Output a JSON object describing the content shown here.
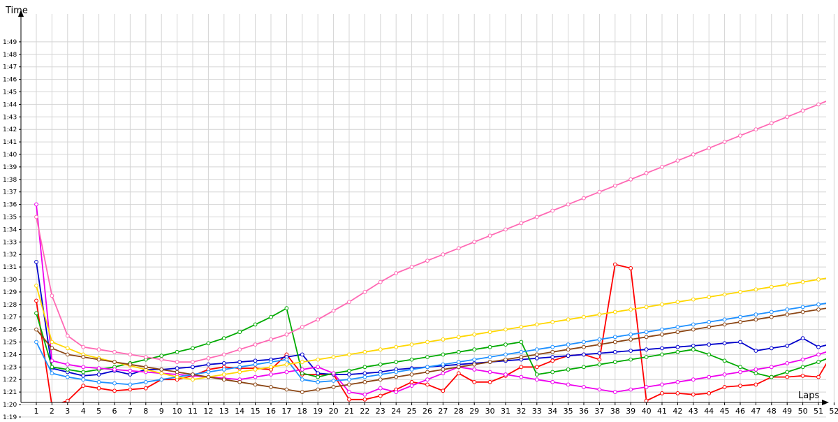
{
  "chart_data": {
    "type": "line",
    "title": "",
    "xlabel": "Laps",
    "ylabel": "Time",
    "xlim": [
      1,
      52
    ],
    "ylim": [
      "1:18",
      "1:50"
    ],
    "grid": true,
    "legend": "none",
    "x_ticks": [
      "1",
      "2",
      "3",
      "4",
      "5",
      "6",
      "7",
      "8",
      "9",
      "10",
      "11",
      "12",
      "13",
      "14",
      "15",
      "16",
      "17",
      "18",
      "19",
      "20",
      "21",
      "22",
      "23",
      "24",
      "25",
      "26",
      "27",
      "28",
      "29",
      "30",
      "31",
      "32",
      "33",
      "34",
      "35",
      "36",
      "37",
      "38",
      "39",
      "40",
      "41",
      "42",
      "43",
      "44",
      "45",
      "46",
      "47",
      "48",
      "49",
      "50",
      "51",
      "52"
    ],
    "y_ticks": [
      "1:19",
      "1:20",
      "1:21",
      "1:22",
      "1:23",
      "1:24",
      "1:25",
      "1:26",
      "1:27",
      "1:28",
      "1:29",
      "1:30",
      "1:31",
      "1:32",
      "1:33",
      "1:34",
      "1:35",
      "1:36",
      "1:37",
      "1:38",
      "1:39",
      "1:40",
      "1:41",
      "1:42",
      "1:43",
      "1:44",
      "1:45",
      "1:46",
      "1:47",
      "1:48",
      "1:49"
    ],
    "series": [
      {
        "color": "#ff0000",
        "values": [
          88.3,
          79.9,
          80.3,
          81.5,
          81.3,
          81.1,
          81.2,
          81.3,
          82.0,
          82.0,
          82.3,
          82.8,
          83.0,
          82.9,
          82.9,
          82.8,
          84.0,
          82.4,
          82.4,
          82.4,
          80.4,
          80.4,
          80.7,
          81.2,
          81.8,
          81.6,
          81.1,
          82.5,
          81.8,
          81.8,
          82.3,
          83.0,
          83.0,
          83.5,
          83.9,
          84.0,
          83.6,
          91.2,
          90.9,
          80.3,
          80.9,
          80.9,
          80.8,
          80.9,
          81.4,
          81.5,
          81.6,
          82.2,
          82.2,
          82.3,
          82.2,
          84.3
        ]
      },
      {
        "color": "#0000cc",
        "values": [
          91.4,
          82.9,
          82.6,
          82.3,
          82.4,
          82.7,
          82.4,
          82.8,
          82.8,
          82.9,
          83.0,
          83.2,
          83.3,
          83.4,
          83.5,
          83.6,
          83.8,
          84.0,
          82.5,
          82.4,
          82.4,
          82.5,
          82.6,
          82.8,
          82.9,
          83.0,
          83.1,
          83.2,
          83.3,
          83.4,
          83.5,
          83.6,
          83.7,
          83.8,
          83.9,
          84.0,
          84.1,
          84.2,
          84.3,
          84.4,
          84.5,
          84.6,
          84.7,
          84.8,
          84.9,
          85.0,
          84.3,
          84.5,
          84.7,
          85.3,
          84.6,
          84.9
        ]
      },
      {
        "color": "#00aa00",
        "values": [
          87.3,
          83.0,
          82.8,
          82.6,
          82.8,
          83.0,
          83.3,
          83.6,
          83.9,
          84.2,
          84.5,
          84.9,
          85.3,
          85.8,
          86.4,
          87.0,
          87.7,
          82.5,
          82.2,
          82.5,
          82.7,
          83.0,
          83.2,
          83.4,
          83.6,
          83.8,
          84.0,
          84.2,
          84.4,
          84.6,
          84.8,
          85.0,
          82.4,
          82.6,
          82.8,
          83.0,
          83.2,
          83.4,
          83.6,
          83.8,
          84.0,
          84.2,
          84.4,
          84.0,
          83.5,
          83.0,
          82.5,
          82.2,
          82.6,
          83.0,
          83.4,
          83.9
        ]
      },
      {
        "color": "#ee00ee",
        "values": [
          96.0,
          83.5,
          83.2,
          83.0,
          82.9,
          82.8,
          82.7,
          82.6,
          82.5,
          82.4,
          82.3,
          82.2,
          82.1,
          82.0,
          82.2,
          82.4,
          82.6,
          82.8,
          83.0,
          82.5,
          81.0,
          80.8,
          81.3,
          81.0,
          81.5,
          82.0,
          82.5,
          83.0,
          82.8,
          82.6,
          82.4,
          82.2,
          82.0,
          81.8,
          81.6,
          81.4,
          81.2,
          81.0,
          81.2,
          81.4,
          81.6,
          81.8,
          82.0,
          82.2,
          82.4,
          82.6,
          82.8,
          83.0,
          83.3,
          83.6,
          84.0,
          84.4
        ]
      },
      {
        "color": "#ff69b4",
        "values": [
          95.0,
          88.7,
          85.5,
          84.6,
          84.4,
          84.2,
          84.0,
          83.8,
          83.6,
          83.4,
          83.4,
          83.7,
          84.0,
          84.4,
          84.8,
          85.2,
          85.6,
          86.2,
          86.8,
          87.5,
          88.2,
          89.0,
          89.8,
          90.5,
          91.0,
          91.5,
          92.0,
          92.5,
          93.0,
          93.5,
          94.0,
          94.5,
          95.0,
          95.5,
          96.0,
          96.5,
          97.0,
          97.5,
          98.0,
          98.5,
          99.0,
          99.5,
          100.0,
          100.5,
          101.0,
          101.5,
          102.0,
          102.5,
          103.0,
          103.5,
          104.0,
          104.5
        ]
      },
      {
        "color": "#1e90ff",
        "values": [
          85.0,
          82.5,
          82.2,
          82.0,
          81.8,
          81.7,
          81.6,
          81.8,
          82.0,
          82.2,
          82.4,
          82.6,
          82.8,
          83.0,
          83.2,
          83.4,
          83.6,
          82.0,
          81.8,
          81.9,
          82.0,
          82.2,
          82.4,
          82.6,
          82.8,
          83.0,
          83.2,
          83.4,
          83.6,
          83.8,
          84.0,
          84.2,
          84.4,
          84.6,
          84.8,
          85.0,
          85.2,
          85.4,
          85.6,
          85.8,
          86.0,
          86.2,
          86.4,
          86.6,
          86.8,
          87.0,
          87.2,
          87.4,
          87.6,
          87.8,
          88.0,
          88.2
        ]
      },
      {
        "color": "#ffd700",
        "values": [
          89.5,
          85.0,
          84.5,
          84.0,
          83.7,
          83.4,
          83.1,
          82.8,
          82.5,
          82.2,
          82.0,
          82.2,
          82.4,
          82.6,
          82.8,
          83.0,
          83.2,
          83.4,
          83.6,
          83.8,
          84.0,
          84.2,
          84.4,
          84.6,
          84.8,
          85.0,
          85.2,
          85.4,
          85.6,
          85.8,
          86.0,
          86.2,
          86.4,
          86.6,
          86.8,
          87.0,
          87.2,
          87.4,
          87.6,
          87.8,
          88.0,
          88.2,
          88.4,
          88.6,
          88.8,
          89.0,
          89.2,
          89.4,
          89.6,
          89.8,
          90.0,
          90.2
        ]
      },
      {
        "color": "#8b4513",
        "values": [
          86.0,
          84.5,
          84.0,
          83.8,
          83.6,
          83.4,
          83.2,
          83.0,
          82.8,
          82.6,
          82.4,
          82.2,
          82.0,
          81.8,
          81.6,
          81.4,
          81.2,
          81.0,
          81.2,
          81.4,
          81.6,
          81.8,
          82.0,
          82.2,
          82.4,
          82.6,
          82.8,
          83.0,
          83.2,
          83.4,
          83.6,
          83.8,
          84.0,
          84.2,
          84.4,
          84.6,
          84.8,
          85.0,
          85.2,
          85.4,
          85.6,
          85.8,
          86.0,
          86.2,
          86.4,
          86.6,
          86.8,
          87.0,
          87.2,
          87.4,
          87.6,
          87.8
        ]
      }
    ]
  }
}
